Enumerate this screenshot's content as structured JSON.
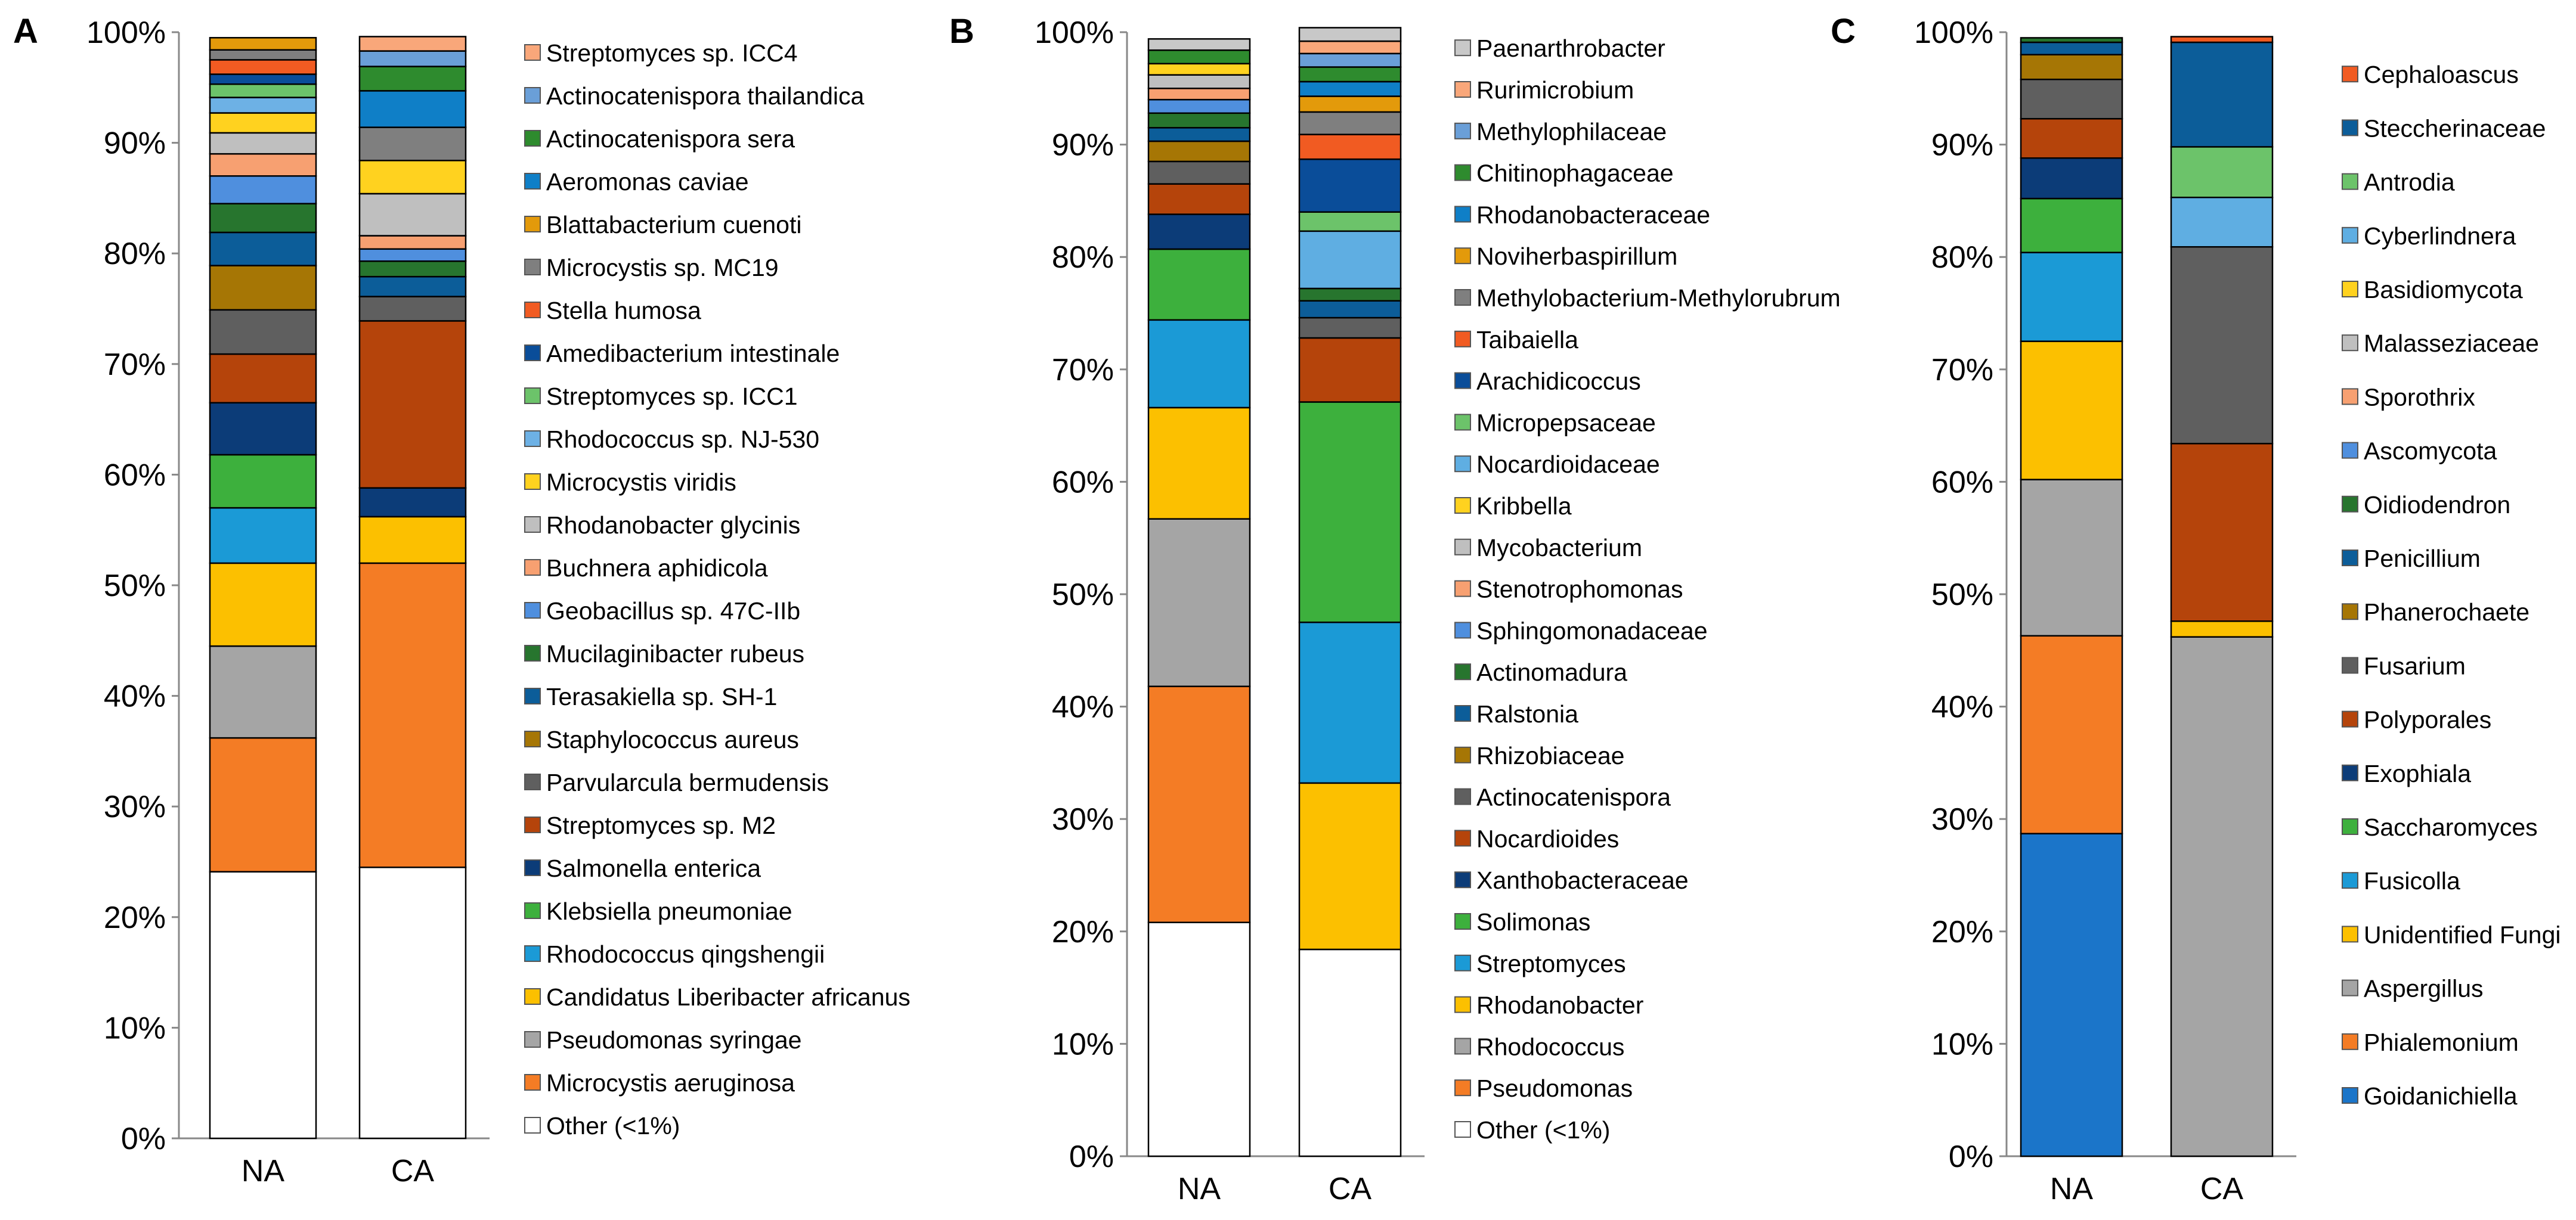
{
  "figure": {
    "panels": [
      "A",
      "B",
      "C"
    ]
  },
  "chart_data": [
    {
      "panel": "A",
      "type": "bar",
      "stacked": true,
      "categories": [
        "NA",
        "CA"
      ],
      "ylim": [
        0,
        100
      ],
      "yticks": [
        "0%",
        "10%",
        "20%",
        "30%",
        "40%",
        "50%",
        "60%",
        "70%",
        "80%",
        "90%",
        "100%"
      ],
      "legend_position": "right",
      "series": [
        {
          "name": "Other (<1%)",
          "color": "#ffffff",
          "values": [
            24.1,
            24.5
          ]
        },
        {
          "name": "Microcystis aeruginosa",
          "color": "#f47c25",
          "values": [
            12.1,
            27.5
          ]
        },
        {
          "name": "Pseudomonas syringae",
          "color": "#a5a5a5",
          "values": [
            8.3,
            0
          ]
        },
        {
          "name": "Candidatus Liberibacter africanus",
          "color": "#fcc000",
          "values": [
            7.5,
            4.2
          ]
        },
        {
          "name": "Rhodococcus qingshengii",
          "color": "#1b9ad6",
          "values": [
            5.0,
            0
          ]
        },
        {
          "name": "Klebsiella pneumoniae",
          "color": "#3db03d",
          "values": [
            4.8,
            0
          ]
        },
        {
          "name": "Salmonella enterica",
          "color": "#0c3c78",
          "values": [
            4.7,
            2.6
          ]
        },
        {
          "name": "Streptomyces sp. M2",
          "color": "#b5440b",
          "values": [
            4.4,
            15.1
          ]
        },
        {
          "name": "Parvularcula bermudensis",
          "color": "#5f5f5f",
          "values": [
            4.0,
            2.2
          ]
        },
        {
          "name": "Staphylococcus aureus",
          "color": "#a67605",
          "values": [
            4.0,
            0
          ]
        },
        {
          "name": "Terasakiella sp. SH-1",
          "color": "#0c5d99",
          "values": [
            3.0,
            1.8
          ]
        },
        {
          "name": "Mucilaginibacter rubeus",
          "color": "#27752e",
          "values": [
            2.6,
            1.4
          ]
        },
        {
          "name": "Geobacillus sp. 47C-IIb",
          "color": "#4f8fde",
          "values": [
            2.5,
            1.1
          ]
        },
        {
          "name": "Buchnera aphidicola",
          "color": "#f7a071",
          "values": [
            2.0,
            1.2
          ]
        },
        {
          "name": "Rhodanobacter glycinis",
          "color": "#bfbfbf",
          "values": [
            1.9,
            3.8
          ]
        },
        {
          "name": "Microcystis viridis",
          "color": "#ffd21f",
          "values": [
            1.8,
            3.0
          ]
        },
        {
          "name": "Rhodococcus sp. NJ-530",
          "color": "#6db1e5",
          "values": [
            1.4,
            0
          ]
        },
        {
          "name": "Streptomyces sp. ICC1",
          "color": "#6cc36a",
          "values": [
            1.2,
            0
          ]
        },
        {
          "name": "Amedibacterium intestinale",
          "color": "#0a4d99",
          "values": [
            0.9,
            0
          ]
        },
        {
          "name": "Stella humosa",
          "color": "#f15b22",
          "values": [
            1.3,
            0
          ]
        },
        {
          "name": "Microcystis sp. MC19",
          "color": "#7f7f7f",
          "values": [
            0.9,
            3.0
          ]
        },
        {
          "name": "Blattabacterium cuenoti",
          "color": "#e39a0b",
          "values": [
            1.1,
            0
          ]
        },
        {
          "name": "Aeromonas caviae",
          "color": "#0f7fc7",
          "values": [
            0,
            3.3
          ]
        },
        {
          "name": "Actinocatenispora sera",
          "color": "#2e8b2e",
          "values": [
            0,
            2.2
          ]
        },
        {
          "name": "Actinocatenispora thailandica",
          "color": "#6a9fd8",
          "values": [
            0,
            1.4
          ]
        },
        {
          "name": "Streptomyces sp. ICC4",
          "color": "#f9a77a",
          "values": [
            0,
            1.3
          ]
        }
      ]
    },
    {
      "panel": "B",
      "type": "bar",
      "stacked": true,
      "categories": [
        "NA",
        "CA"
      ],
      "ylim": [
        0,
        100
      ],
      "yticks": [
        "0%",
        "10%",
        "20%",
        "30%",
        "40%",
        "50%",
        "60%",
        "70%",
        "80%",
        "90%",
        "100%"
      ],
      "legend_position": "right",
      "series": [
        {
          "name": "Other (<1%)",
          "color": "#ffffff",
          "values": [
            20.8,
            18.4
          ]
        },
        {
          "name": "Pseudomonas",
          "color": "#f47c25",
          "values": [
            21.0,
            0
          ]
        },
        {
          "name": "Rhodococcus",
          "color": "#a5a5a5",
          "values": [
            14.9,
            0
          ]
        },
        {
          "name": "Rhodanobacter",
          "color": "#fcc000",
          "values": [
            9.9,
            14.8
          ]
        },
        {
          "name": "Streptomyces",
          "color": "#1b9ad6",
          "values": [
            7.8,
            14.3
          ]
        },
        {
          "name": "Solimonas",
          "color": "#3db03d",
          "values": [
            6.3,
            19.6
          ]
        },
        {
          "name": "Xanthobacteraceae",
          "color": "#0c3c78",
          "values": [
            3.1,
            0
          ]
        },
        {
          "name": "Nocardioides",
          "color": "#b5440b",
          "values": [
            2.7,
            5.7
          ]
        },
        {
          "name": "Actinocatenispora",
          "color": "#5f5f5f",
          "values": [
            2.0,
            1.8
          ]
        },
        {
          "name": "Rhizobiaceae",
          "color": "#a67605",
          "values": [
            1.8,
            0
          ]
        },
        {
          "name": "Ralstonia",
          "color": "#0c5d99",
          "values": [
            1.2,
            1.5
          ]
        },
        {
          "name": "Actinomadura",
          "color": "#27752e",
          "values": [
            1.3,
            1.1
          ]
        },
        {
          "name": "Sphingomonadaceae",
          "color": "#4f8fde",
          "values": [
            1.2,
            0
          ]
        },
        {
          "name": "Stenotrophomonas",
          "color": "#f7a071",
          "values": [
            1.0,
            0
          ]
        },
        {
          "name": "Mycobacterium",
          "color": "#bfbfbf",
          "values": [
            1.2,
            0
          ]
        },
        {
          "name": "Kribbella",
          "color": "#ffd21f",
          "values": [
            1.0,
            0
          ]
        },
        {
          "name": "Nocardioidaceae",
          "color": "#5faee2",
          "values": [
            0,
            5.1
          ]
        },
        {
          "name": "Micropepsaceae",
          "color": "#6cc36a",
          "values": [
            0,
            1.7
          ]
        },
        {
          "name": "Arachidicoccus",
          "color": "#0a4d99",
          "values": [
            0,
            4.7
          ]
        },
        {
          "name": "Taibaiella",
          "color": "#f15b22",
          "values": [
            0,
            2.2
          ]
        },
        {
          "name": "Methylobacterium-Methylorubrum",
          "color": "#7f7f7f",
          "values": [
            0,
            2.0
          ]
        },
        {
          "name": "Noviherbaspirillum",
          "color": "#e39a0b",
          "values": [
            0,
            1.4
          ]
        },
        {
          "name": "Rhodanobacteraceae",
          "color": "#0f7fc7",
          "values": [
            0,
            1.3
          ]
        },
        {
          "name": "Chitinophagaceae",
          "color": "#2e8b2e",
          "values": [
            1.2,
            1.3
          ]
        },
        {
          "name": "Methylophilaceae",
          "color": "#6a9fd8",
          "values": [
            0,
            1.2
          ]
        },
        {
          "name": "Rurimicrobium",
          "color": "#f9a77a",
          "values": [
            0,
            1.1
          ]
        },
        {
          "name": "Paenarthrobacter",
          "color": "#c8c8c8",
          "values": [
            1.0,
            1.2
          ]
        }
      ]
    },
    {
      "panel": "C",
      "type": "bar",
      "stacked": true,
      "categories": [
        "NA",
        "CA"
      ],
      "ylim": [
        0,
        100
      ],
      "yticks": [
        "0%",
        "10%",
        "20%",
        "30%",
        "40%",
        "50%",
        "60%",
        "70%",
        "80%",
        "90%",
        "100%"
      ],
      "legend_position": "right",
      "series": [
        {
          "name": "Goidanichiella",
          "color": "#1b75c9",
          "values": [
            28.7,
            0
          ]
        },
        {
          "name": "Phialemonium",
          "color": "#f47c25",
          "values": [
            17.6,
            0
          ]
        },
        {
          "name": "Aspergillus",
          "color": "#a5a5a5",
          "values": [
            13.9,
            46.2
          ]
        },
        {
          "name": "Unidentified Fungi",
          "color": "#fcc000",
          "values": [
            12.3,
            1.4
          ]
        },
        {
          "name": "Fusicolla",
          "color": "#1b9ad6",
          "values": [
            7.9,
            0
          ]
        },
        {
          "name": "Saccharomyces",
          "color": "#3db03d",
          "values": [
            4.8,
            0
          ]
        },
        {
          "name": "Exophiala",
          "color": "#0c3c78",
          "values": [
            3.6,
            0
          ]
        },
        {
          "name": "Polyporales",
          "color": "#b5440b",
          "values": [
            3.5,
            15.8
          ]
        },
        {
          "name": "Fusarium",
          "color": "#5f5f5f",
          "values": [
            3.5,
            17.5
          ]
        },
        {
          "name": "Phanerochaete",
          "color": "#a67605",
          "values": [
            2.2,
            0
          ]
        },
        {
          "name": "Penicillium",
          "color": "#0c5d99",
          "values": [
            1.1,
            0
          ]
        },
        {
          "name": "Oidiodendron",
          "color": "#27752e",
          "values": [
            0.4,
            0
          ]
        },
        {
          "name": "Ascomycota",
          "color": "#4f8fde",
          "values": [
            0,
            0
          ]
        },
        {
          "name": "Sporothrix",
          "color": "#f7a071",
          "values": [
            0,
            0
          ]
        },
        {
          "name": "Malasseziaceae",
          "color": "#bfbfbf",
          "values": [
            0,
            0
          ]
        },
        {
          "name": "Basidiomycota",
          "color": "#ffd21f",
          "values": [
            0,
            0
          ]
        },
        {
          "name": "Cyberlindnera",
          "color": "#5faee2",
          "values": [
            0,
            4.4
          ]
        },
        {
          "name": "Antrodia",
          "color": "#6cc36a",
          "values": [
            0,
            4.5
          ]
        },
        {
          "name": "Steccherinaceae",
          "color": "#0c5d99",
          "values": [
            0,
            9.3
          ]
        },
        {
          "name": "Cephaloascus",
          "color": "#f15b22",
          "values": [
            0,
            0.5
          ]
        }
      ]
    }
  ]
}
